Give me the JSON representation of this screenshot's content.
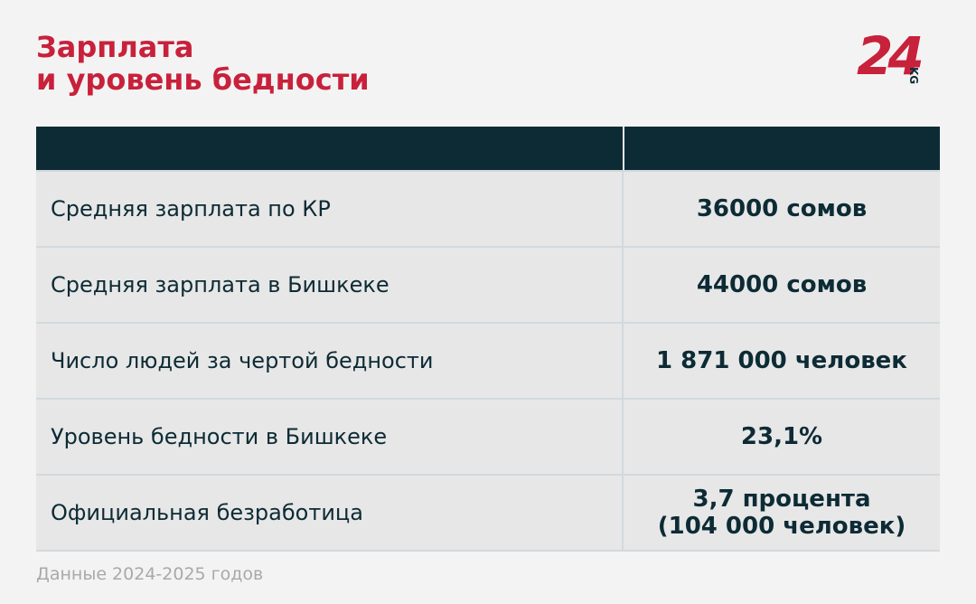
{
  "header": {
    "title": [
      "Зарплата",
      "и уровень бедности"
    ],
    "logo": {
      "number": "24",
      "suffix": "KG"
    }
  },
  "table": {
    "rows": [
      [
        "Средняя зарплата по КР",
        [
          "36000 сомов"
        ]
      ],
      [
        "Средняя зарплата в Бишкеке",
        [
          "44000 сомов"
        ]
      ],
      [
        "Число людей за чертой бедности",
        [
          "1 871 000 человек"
        ]
      ],
      [
        "Уровень бедности в Бишкеке",
        [
          "23,1%"
        ]
      ],
      [
        "Официальная безработица",
        [
          "3,7 процента",
          "(104 000 человек)"
        ]
      ]
    ]
  },
  "footer": {
    "note": "Данные 2024-2025 годов"
  }
}
